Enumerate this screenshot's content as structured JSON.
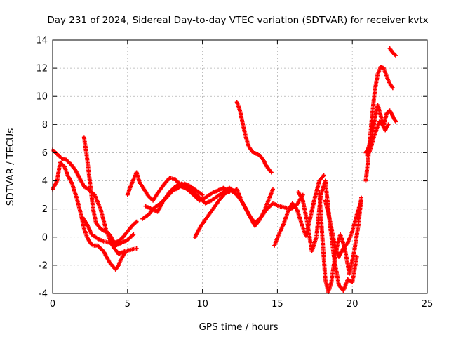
{
  "chart_data": {
    "type": "scatter",
    "title": "Day 231 of 2024, Sidereal Day-to-day VTEC variation (SDTVAR) for receiver kvtx",
    "xlabel": "GPS time / hours",
    "ylabel": "SDTVAR / TECUs",
    "xlim": [
      0,
      25
    ],
    "ylim": [
      -4,
      14
    ],
    "xticks": [
      0,
      5,
      10,
      15,
      20,
      25
    ],
    "yticks": [
      -4,
      -2,
      0,
      2,
      4,
      6,
      8,
      10,
      12,
      14
    ],
    "xtick_labels": [
      "0",
      "5",
      "10",
      "15",
      "20",
      "25"
    ],
    "ytick_labels": [
      "-4",
      "-2",
      "0",
      "2",
      "4",
      "6",
      "8",
      "10",
      "12",
      "14"
    ],
    "grid": true,
    "marker": "+",
    "color": "#ff0000",
    "series": [
      {
        "name": "track-1",
        "x": [
          0.0,
          0.3,
          0.6,
          0.9,
          1.2,
          1.5,
          1.8,
          2.1,
          2.4,
          2.8,
          3.2,
          3.6,
          4.0,
          4.4,
          4.8,
          5.2,
          5.6
        ],
        "y": [
          6.2,
          5.9,
          5.6,
          5.5,
          5.2,
          4.8,
          4.2,
          3.6,
          3.4,
          3.0,
          2.0,
          0.4,
          -0.6,
          -1.2,
          -1.0,
          -0.9,
          -0.8
        ]
      },
      {
        "name": "track-2",
        "x": [
          0.0,
          0.3,
          0.5,
          0.8,
          1.0,
          1.3,
          1.6,
          1.9,
          2.1,
          2.3,
          2.5,
          2.7,
          3.0,
          3.4,
          3.8,
          4.2,
          4.4,
          4.6,
          4.9
        ],
        "y": [
          3.4,
          4.0,
          5.3,
          5.0,
          4.4,
          3.8,
          2.8,
          1.6,
          0.6,
          0.0,
          -0.4,
          -0.6,
          -0.6,
          -1.0,
          -1.8,
          -2.3,
          -2.0,
          -1.5,
          -1.0
        ]
      },
      {
        "name": "track-3",
        "x": [
          2.1,
          2.3,
          2.5,
          2.7,
          2.9,
          3.2,
          3.5,
          3.8,
          4.1,
          4.4,
          4.7,
          5.0,
          5.3,
          5.6
        ],
        "y": [
          7.1,
          5.6,
          3.8,
          2.0,
          1.0,
          0.6,
          0.4,
          0.2,
          -0.4,
          -0.3,
          0.0,
          0.4,
          0.8,
          1.1
        ]
      },
      {
        "name": "track-4",
        "x": [
          2.0,
          2.3,
          2.6,
          3.0,
          3.4,
          3.8,
          4.2,
          4.6,
          5.0,
          5.4
        ],
        "y": [
          1.4,
          0.9,
          0.2,
          -0.1,
          -0.3,
          -0.4,
          -0.6,
          -0.4,
          -0.2,
          0.2
        ]
      },
      {
        "name": "track-5",
        "x": [
          5.0,
          5.2,
          5.4,
          5.6,
          5.8,
          6.1,
          6.4,
          6.7,
          7.0,
          7.4,
          7.8,
          8.2,
          8.6,
          9.0,
          9.4,
          9.8,
          10.2,
          10.6,
          11.0,
          11.4,
          11.8
        ],
        "y": [
          3.0,
          3.6,
          4.1,
          4.6,
          3.9,
          3.4,
          2.9,
          2.6,
          3.1,
          3.7,
          4.2,
          4.1,
          3.6,
          3.4,
          3.0,
          2.6,
          2.8,
          3.1,
          3.3,
          3.5,
          3.2
        ]
      },
      {
        "name": "track-6",
        "x": [
          6.2,
          6.6,
          7.0,
          7.4,
          7.8,
          8.2,
          8.6,
          9.0,
          9.4,
          9.8,
          10.2,
          10.6,
          11.0,
          11.4,
          11.8,
          12.2
        ],
        "y": [
          2.2,
          2.0,
          1.8,
          2.6,
          3.2,
          3.6,
          3.8,
          3.6,
          3.2,
          2.8,
          2.4,
          2.6,
          2.9,
          3.2,
          3.5,
          3.2
        ]
      },
      {
        "name": "track-7",
        "x": [
          6.0,
          6.4,
          6.8,
          7.2,
          7.6,
          8.0,
          8.4,
          8.8,
          9.2,
          9.6,
          10.0
        ],
        "y": [
          1.3,
          1.6,
          2.1,
          2.4,
          2.8,
          3.3,
          3.5,
          3.8,
          3.6,
          3.3,
          3.0
        ]
      },
      {
        "name": "track-8",
        "x": [
          9.5,
          9.9,
          10.3,
          10.7,
          11.1,
          11.5,
          11.9,
          12.3,
          12.7,
          13.1,
          13.5,
          13.9,
          14.3,
          14.7,
          15.1,
          15.5,
          15.9,
          16.3,
          16.7
        ],
        "y": [
          0.0,
          0.8,
          1.4,
          2.0,
          2.6,
          3.1,
          3.3,
          3.0,
          2.4,
          1.6,
          1.0,
          1.4,
          2.0,
          2.4,
          2.2,
          2.1,
          2.0,
          2.3,
          3.0
        ]
      },
      {
        "name": "track-9",
        "x": [
          12.0,
          12.3,
          12.6,
          12.9,
          13.2,
          13.5,
          13.8,
          14.1,
          14.4,
          14.7
        ],
        "y": [
          3.2,
          3.4,
          2.6,
          2.0,
          1.4,
          0.8,
          1.2,
          1.8,
          2.6,
          3.4
        ]
      },
      {
        "name": "track-10",
        "x": [
          12.3,
          12.5,
          12.7,
          12.9,
          13.1,
          13.4,
          13.7,
          14.0,
          14.3,
          14.6
        ],
        "y": [
          9.6,
          9.0,
          8.0,
          7.1,
          6.4,
          6.0,
          5.9,
          5.6,
          5.0,
          4.6
        ]
      },
      {
        "name": "track-11",
        "x": [
          14.8,
          15.1,
          15.4,
          15.7,
          16.0,
          16.3,
          16.6,
          16.9,
          17.2,
          17.5,
          17.8,
          18.1
        ],
        "y": [
          -0.6,
          0.2,
          0.9,
          1.8,
          2.4,
          2.0,
          1.0,
          0.1,
          1.4,
          2.8,
          4.0,
          4.4
        ]
      },
      {
        "name": "track-12",
        "x": [
          16.4,
          16.7,
          17.0,
          17.3,
          17.6,
          17.9,
          18.2,
          18.5,
          18.8,
          19.1,
          19.4,
          19.7,
          20.0,
          20.3
        ],
        "y": [
          3.2,
          2.6,
          1.0,
          -1.0,
          0.0,
          3.0,
          4.0,
          1.0,
          -1.6,
          -3.4,
          -3.8,
          -3.0,
          -3.2,
          -1.4
        ]
      },
      {
        "name": "track-13",
        "x": [
          17.8,
          18.0,
          18.2,
          18.4,
          18.6,
          18.9,
          19.2,
          19.5,
          19.8,
          20.1,
          20.4,
          20.6
        ],
        "y": [
          3.2,
          0.0,
          -3.0,
          -3.9,
          -3.2,
          -1.0,
          0.2,
          -0.8,
          -2.6,
          -1.2,
          0.8,
          2.8
        ]
      },
      {
        "name": "track-14",
        "x": [
          18.2,
          18.5,
          18.8,
          19.1,
          19.4,
          19.7,
          20.0,
          20.3,
          20.6
        ],
        "y": [
          2.6,
          1.2,
          -0.4,
          -1.4,
          -0.8,
          -0.4,
          0.4,
          1.6,
          2.6
        ]
      },
      {
        "name": "track-15",
        "x": [
          20.9,
          21.1,
          21.3,
          21.5,
          21.7,
          21.9,
          22.1,
          22.3,
          22.5,
          22.7
        ],
        "y": [
          4.0,
          6.0,
          8.4,
          10.4,
          11.6,
          12.1,
          12.0,
          11.4,
          10.9,
          10.6
        ]
      },
      {
        "name": "track-16",
        "x": [
          20.9,
          21.1,
          21.3,
          21.5,
          21.7,
          21.9,
          22.1,
          22.3,
          22.5,
          22.7,
          22.9
        ],
        "y": [
          6.0,
          6.4,
          7.2,
          8.4,
          9.4,
          8.6,
          8.0,
          8.8,
          9.0,
          8.6,
          8.2
        ]
      },
      {
        "name": "track-17",
        "x": [
          21.0,
          21.2,
          21.4,
          21.6,
          21.8,
          22.0,
          22.2,
          22.4
        ],
        "y": [
          5.8,
          6.2,
          7.0,
          7.6,
          8.2,
          8.0,
          7.6,
          8.0
        ]
      },
      {
        "name": "track-18",
        "x": [
          22.5,
          22.7,
          22.9
        ],
        "y": [
          13.4,
          13.1,
          12.9
        ]
      }
    ]
  }
}
